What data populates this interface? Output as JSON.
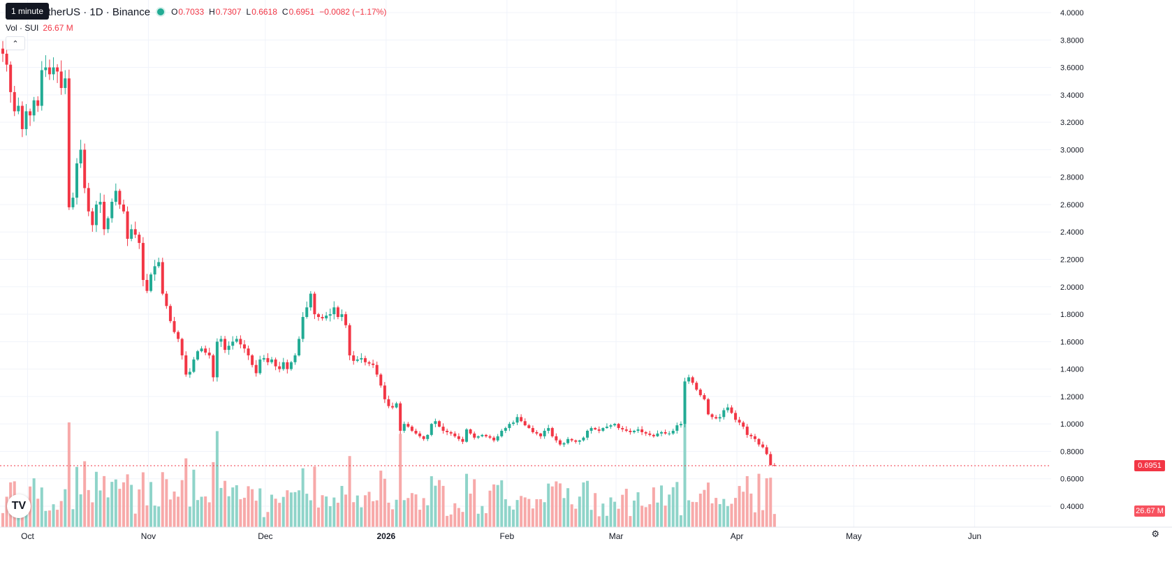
{
  "legend": {
    "tooltip": "1 minute",
    "symbol": "SUI / TetherUS · 1D · Binance",
    "symbol_visible": "etherUS · 1D · Binance",
    "open_label": "O",
    "open": "0.7033",
    "high_label": "H",
    "high": "0.7307",
    "low_label": "L",
    "low": "0.6618",
    "close_label": "C",
    "close": "0.6951",
    "change": "−0.0082 (−1.17%)"
  },
  "volume_legend": {
    "label": "Vol · SUI",
    "value": "26.67 M"
  },
  "last_price_label": "0.6951",
  "volume_label": "26.67 M",
  "logo_text": "TV",
  "colors": {
    "up": "#22ab94",
    "down": "#f23645",
    "up_vol": "#8fd4c9",
    "down_vol": "#f7a9a9",
    "grid": "#f0f3fa"
  },
  "chart_data": {
    "type": "candlestick",
    "interval": "1D",
    "exchange": "Binance",
    "ylim": [
      0.3,
      4.0
    ],
    "y_ticks": [
      "4.0000",
      "3.8000",
      "3.6000",
      "3.4000",
      "3.2000",
      "3.0000",
      "2.8000",
      "2.6000",
      "2.4000",
      "2.2000",
      "2.0000",
      "1.8000",
      "1.6000",
      "1.4000",
      "1.2000",
      "1.0000",
      "0.8000",
      "0.6000",
      "0.4000"
    ],
    "x_ticks": [
      "Oct",
      "Nov",
      "Dec",
      "2026",
      "Feb",
      "Mar",
      "Apr",
      "May",
      "Jun"
    ],
    "bold_ticks": [
      "2026"
    ],
    "x_tick_day_index": [
      6,
      37,
      67,
      98,
      129,
      157,
      188,
      218,
      249
    ],
    "last_price": 0.6951,
    "last_volume": "26.67M",
    "closes": [
      3.7,
      3.62,
      3.42,
      3.28,
      3.32,
      3.15,
      3.28,
      3.25,
      3.36,
      3.32,
      3.58,
      3.6,
      3.55,
      3.6,
      3.57,
      3.45,
      3.52,
      2.58,
      2.65,
      2.9,
      3.0,
      2.72,
      2.55,
      2.45,
      2.6,
      2.62,
      2.42,
      2.5,
      2.62,
      2.7,
      2.6,
      2.55,
      2.35,
      2.42,
      2.38,
      2.32,
      2.05,
      1.97,
      2.09,
      2.15,
      2.18,
      1.95,
      1.86,
      1.75,
      1.67,
      1.62,
      1.5,
      1.36,
      1.38,
      1.47,
      1.53,
      1.55,
      1.52,
      1.5,
      1.34,
      1.6,
      1.62,
      1.54,
      1.57,
      1.6,
      1.62,
      1.58,
      1.55,
      1.5,
      1.43,
      1.37,
      1.47,
      1.48,
      1.45,
      1.47,
      1.42,
      1.4,
      1.45,
      1.4,
      1.45,
      1.5,
      1.62,
      1.78,
      1.85,
      1.95,
      1.8,
      1.78,
      1.77,
      1.79,
      1.8,
      1.85,
      1.78,
      1.8,
      1.72,
      1.5,
      1.46,
      1.47,
      1.48,
      1.45,
      1.44,
      1.43,
      1.36,
      1.28,
      1.18,
      1.13,
      1.12,
      1.15,
      0.95,
      1.0,
      0.98,
      0.95,
      0.93,
      0.91,
      0.89,
      0.92,
      1.0,
      1.02,
      0.98,
      0.95,
      0.94,
      0.93,
      0.91,
      0.89,
      0.87,
      0.96,
      0.93,
      0.9,
      0.91,
      0.92,
      0.91,
      0.9,
      0.88,
      0.91,
      0.95,
      0.97,
      1.0,
      1.01,
      1.05,
      1.02,
      0.99,
      0.97,
      0.94,
      0.93,
      0.91,
      0.95,
      0.97,
      0.91,
      0.88,
      0.85,
      0.86,
      0.89,
      0.88,
      0.87,
      0.88,
      0.9,
      0.95,
      0.97,
      0.96,
      0.95,
      0.97,
      0.98,
      0.99,
      1.0,
      0.97,
      0.96,
      0.95,
      0.94,
      0.95,
      0.96,
      0.94,
      0.93,
      0.92,
      0.91,
      0.93,
      0.94,
      0.93,
      0.93,
      0.95,
      0.99,
      1.0,
      1.31,
      1.34,
      1.3,
      1.25,
      1.21,
      1.18,
      1.07,
      1.05,
      1.04,
      1.05,
      1.1,
      1.12,
      1.08,
      1.03,
      1.01,
      0.98,
      0.92,
      0.91,
      0.89,
      0.85,
      0.83,
      0.78,
      0.7,
      0.6951
    ]
  }
}
